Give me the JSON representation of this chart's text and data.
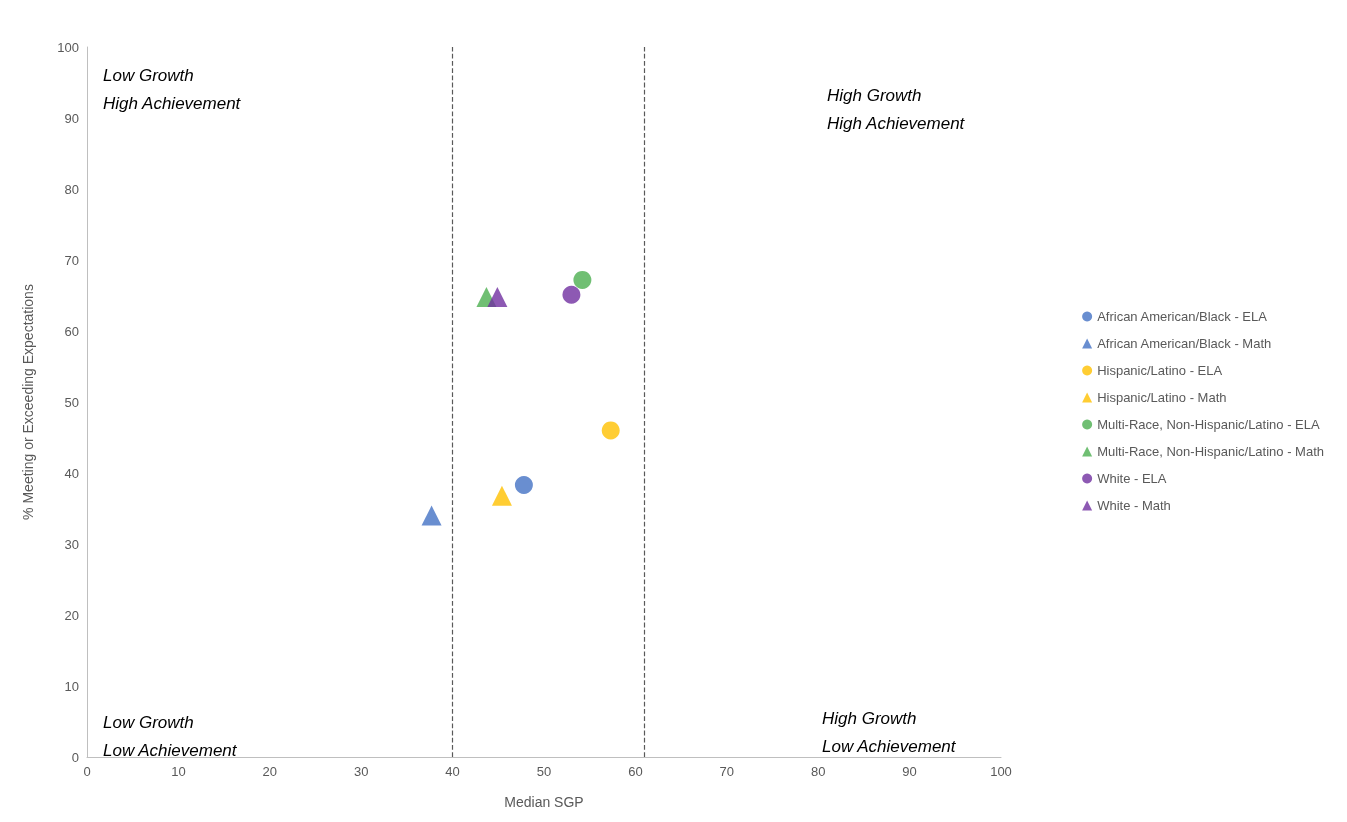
{
  "chart_data": {
    "type": "scatter",
    "xlabel": "Median SGP",
    "ylabel": "% Meeting or Exceeding Expectations",
    "xlim": [
      0,
      100
    ],
    "xticks": [
      0,
      10,
      20,
      30,
      40,
      50,
      60,
      70,
      80,
      90,
      100
    ],
    "ylim": [
      0,
      100
    ],
    "yticks": [
      0,
      10,
      20,
      30,
      40,
      50,
      60,
      70,
      80,
      90,
      100
    ],
    "grid": false,
    "legend": "right",
    "series": [
      {
        "name": "African American/Black - ELA",
        "color": "#4472c4",
        "marker": "circle",
        "x": [
          47.8
        ],
        "values": [
          38.3
        ]
      },
      {
        "name": "African American/Black - Math",
        "color": "#4472c4",
        "marker": "triangle",
        "x": [
          37.7
        ],
        "values": [
          34.0
        ]
      },
      {
        "name": "Hispanic/Latino - ELA",
        "color": "#ffc000",
        "marker": "circle",
        "x": [
          57.3
        ],
        "values": [
          46.0
        ]
      },
      {
        "name": "Hispanic/Latino - Math",
        "color": "#ffc000",
        "marker": "triangle",
        "x": [
          45.4
        ],
        "values": [
          36.8
        ]
      },
      {
        "name": "Multi-Race, Non-Hispanic/Latino - ELA",
        "color": "#4caf50",
        "marker": "circle",
        "x": [
          54.2
        ],
        "values": [
          67.2
        ]
      },
      {
        "name": "Multi-Race, Non-Hispanic/Latino - Math",
        "color": "#4caf50",
        "marker": "triangle",
        "x": [
          43.7
        ],
        "values": [
          64.8
        ]
      },
      {
        "name": "White - ELA",
        "color": "#7030a0",
        "marker": "circle",
        "x": [
          53.0
        ],
        "values": [
          65.1
        ]
      },
      {
        "name": "White - Math",
        "color": "#7030a0",
        "marker": "triangle",
        "x": [
          44.9
        ],
        "values": [
          64.8
        ]
      }
    ],
    "ref_lines": [
      {
        "axis": "x",
        "value": 40,
        "line_style": "dashed",
        "color": "#595959"
      },
      {
        "axis": "x",
        "value": 61,
        "line_style": "dashed",
        "color": "#595959"
      }
    ],
    "annotations": [
      "Low Growth\nHigh Achievement",
      "High Growth\nHigh Achievement",
      "Low Growth\nLow Achievement",
      "High Growth\nLow Achievement"
    ]
  }
}
